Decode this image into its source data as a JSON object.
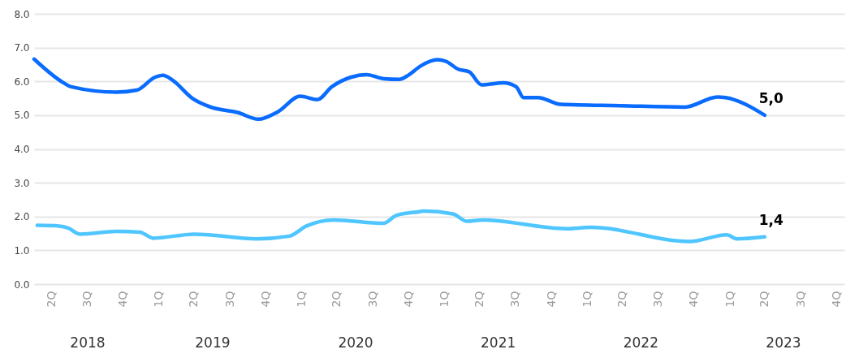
{
  "chart_data": {
    "type": "line",
    "grid": "y",
    "xlim": [
      "2018-04-01",
      "2023-12-05"
    ],
    "xticks": [
      {
        "value": "2018-05-15",
        "label": "2Q"
      },
      {
        "value": "2018-08-15",
        "label": "3Q"
      },
      {
        "value": "2018-11-15",
        "label": "4Q"
      },
      {
        "value": "2019-02-15",
        "label": "1Q"
      },
      {
        "value": "2019-05-15",
        "label": "2Q"
      },
      {
        "value": "2019-08-15",
        "label": "3Q"
      },
      {
        "value": "2019-11-15",
        "label": "4Q"
      },
      {
        "value": "2020-02-15",
        "label": "1Q"
      },
      {
        "value": "2020-05-15",
        "label": "2Q"
      },
      {
        "value": "2020-08-15",
        "label": "3Q"
      },
      {
        "value": "2020-11-15",
        "label": "4Q"
      },
      {
        "value": "2021-02-15",
        "label": "1Q"
      },
      {
        "value": "2021-05-15",
        "label": "2Q"
      },
      {
        "value": "2021-08-15",
        "label": "3Q"
      },
      {
        "value": "2021-11-15",
        "label": "4Q"
      },
      {
        "value": "2022-02-15",
        "label": "1Q"
      },
      {
        "value": "2022-05-15",
        "label": "2Q"
      },
      {
        "value": "2022-08-15",
        "label": "3Q"
      },
      {
        "value": "2022-11-15",
        "label": "4Q"
      },
      {
        "value": "2023-02-15",
        "label": "1Q"
      },
      {
        "value": "2023-05-15",
        "label": "2Q"
      },
      {
        "value": "2023-08-15",
        "label": "3Q"
      },
      {
        "value": "2023-11-15",
        "label": "4Q"
      }
    ],
    "x2lim": [
      "2018-04-01",
      "2023-12-05"
    ],
    "x2ticks": [
      {
        "value": "2018-08-15",
        "label": "2018"
      },
      {
        "value": "2019-07-01",
        "label": "2019"
      },
      {
        "value": "2020-07-01",
        "label": "2020"
      },
      {
        "value": "2021-07-01",
        "label": "2021"
      },
      {
        "value": "2022-07-01",
        "label": "2022"
      },
      {
        "value": "2023-07-01",
        "label": "2023"
      }
    ],
    "ylim": [
      0,
      8
    ],
    "yticks": [
      {
        "value": 0,
        "label": "0.0"
      },
      {
        "value": 1,
        "label": "1.0"
      },
      {
        "value": 2,
        "label": "2.0"
      },
      {
        "value": 3,
        "label": "3.0"
      },
      {
        "value": 4,
        "label": "4.0"
      },
      {
        "value": 5,
        "label": "5.0"
      },
      {
        "value": 6,
        "label": "6.0"
      },
      {
        "value": 7,
        "label": "7.0"
      },
      {
        "value": 8,
        "label": "8.0"
      }
    ],
    "series": [
      {
        "color": "#0a6cff",
        "x": [
          "2018-04-01",
          "2018-06-15",
          "2018-07-05",
          "2018-10-29",
          "2018-12-20",
          "2019-02-04",
          "2019-02-25",
          "2019-03-21",
          "2019-05-11",
          "2019-06-27",
          "2019-09-04",
          "2019-10-27",
          "2019-12-16",
          "2020-02-11",
          "2020-03-26",
          "2020-05-02",
          "2020-06-19",
          "2020-07-30",
          "2020-09-11",
          "2020-10-22",
          "2020-11-11",
          "2020-12-16",
          "2021-01-27",
          "2021-02-17",
          "2021-03-22",
          "2021-04-19",
          "2021-05-20",
          "2021-07-16",
          "2021-08-17",
          "2021-09-05",
          "2021-10-12",
          "2021-12-09",
          "2022-05-10",
          "2022-10-23",
          "2023-01-14",
          "2023-02-04",
          "2023-05-15"
        ],
        "values": [
          6.66,
          5.96,
          5.84,
          5.68,
          5.74,
          6.12,
          6.18,
          6.04,
          5.5,
          5.24,
          5.08,
          4.88,
          5.1,
          5.56,
          5.46,
          5.84,
          6.12,
          6.2,
          6.08,
          6.06,
          6.16,
          6.46,
          6.64,
          6.6,
          6.36,
          6.28,
          5.9,
          5.96,
          5.84,
          5.52,
          5.52,
          5.32,
          5.28,
          5.24,
          5.54,
          5.52,
          5.0
        ],
        "value_labels": [
          null,
          null,
          null,
          null,
          null,
          null,
          null,
          null,
          null,
          null,
          null,
          null,
          null,
          null,
          null,
          null,
          null,
          null,
          null,
          null,
          null,
          null,
          null,
          null,
          null,
          null,
          null,
          null,
          null,
          null,
          null,
          null,
          null,
          null,
          null,
          null,
          "5,0"
        ]
      },
      {
        "color": "#4fc6ff",
        "x": [
          "2018-04-09",
          "2018-06-04",
          "2018-06-27",
          "2018-07-27",
          "2018-10-29",
          "2018-12-28",
          "2019-01-31",
          "2019-05-16",
          "2019-10-23",
          "2020-01-14",
          "2020-02-27",
          "2020-05-07",
          "2020-09-11",
          "2020-10-15",
          "2020-12-10",
          "2020-12-23",
          "2021-03-08",
          "2021-04-13",
          "2021-05-23",
          "2021-12-23",
          "2022-02-24",
          "2022-11-04",
          "2023-02-07",
          "2023-03-05",
          "2023-05-15"
        ],
        "values": [
          1.74,
          1.72,
          1.66,
          1.48,
          1.56,
          1.54,
          1.36,
          1.48,
          1.34,
          1.42,
          1.72,
          1.9,
          1.8,
          2.04,
          2.14,
          2.16,
          2.08,
          1.86,
          1.9,
          1.64,
          1.68,
          1.26,
          1.46,
          1.34,
          1.4
        ],
        "value_labels": [
          null,
          null,
          null,
          null,
          null,
          null,
          null,
          null,
          null,
          null,
          null,
          null,
          null,
          null,
          null,
          null,
          null,
          null,
          null,
          null,
          null,
          null,
          null,
          null,
          "1,4"
        ]
      }
    ]
  }
}
